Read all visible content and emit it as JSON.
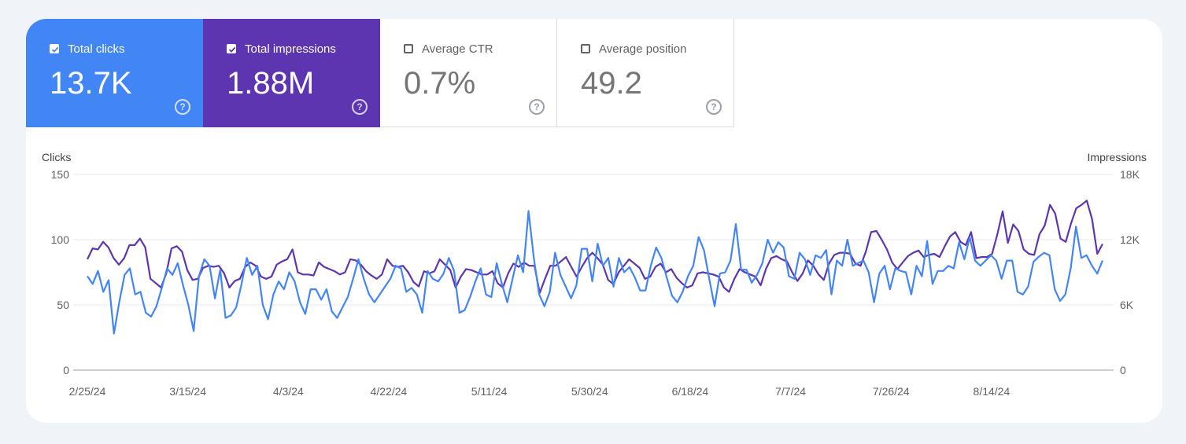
{
  "metrics": {
    "clicks": {
      "label": "Total clicks",
      "value": "13.7K",
      "checked": true
    },
    "impressions": {
      "label": "Total impressions",
      "value": "1.88M",
      "checked": true
    },
    "ctr": {
      "label": "Average CTR",
      "value": "0.7%",
      "checked": false
    },
    "position": {
      "label": "Average position",
      "value": "49.2",
      "checked": false
    }
  },
  "help_glyph": "?",
  "colors": {
    "clicks": "#4285f4",
    "impressions": "#5e35b1"
  },
  "chart_data": {
    "type": "line",
    "title": "",
    "left_axis_label": "Clicks",
    "right_axis_label": "Impressions",
    "left_ylim": [
      0,
      150
    ],
    "right_ylim": [
      0,
      18000
    ],
    "left_ticks": [
      "0",
      "50",
      "100",
      "150"
    ],
    "right_ticks": [
      "0",
      "6K",
      "12K",
      "18K"
    ],
    "x_tick_labels": [
      "2/25/24",
      "3/15/24",
      "4/3/24",
      "4/22/24",
      "5/11/24",
      "5/30/24",
      "6/18/24",
      "7/7/24",
      "7/26/24",
      "8/14/24"
    ],
    "x_start": "2024-02-25",
    "x_end": "2024-09-04",
    "grid": true,
    "series": [
      {
        "name": "Clicks",
        "axis": "left",
        "values": [
          72,
          66,
          76,
          60,
          69,
          28,
          52,
          73,
          78,
          58,
          60,
          44,
          41,
          49,
          63,
          78,
          73,
          82,
          65,
          50,
          30,
          72,
          85,
          80,
          55,
          77,
          40,
          42,
          48,
          66,
          86,
          73,
          80,
          50,
          39,
          58,
          68,
          62,
          75,
          68,
          52,
          43,
          62,
          62,
          54,
          62,
          45,
          40,
          48,
          56,
          70,
          85,
          70,
          58,
          52,
          58,
          64,
          70,
          80,
          78,
          60,
          63,
          58,
          44,
          76,
          70,
          68,
          74,
          86,
          76,
          44,
          46,
          56,
          68,
          78,
          58,
          56,
          82,
          66,
          52,
          70,
          88,
          75,
          122,
          86,
          58,
          49,
          60,
          90,
          73,
          64,
          55,
          65,
          93,
          93,
          68,
          97,
          80,
          86,
          64,
          86,
          75,
          79,
          71,
          61,
          61,
          80,
          94,
          86,
          71,
          57,
          52,
          60,
          72,
          80,
          102,
          92,
          70,
          49,
          74,
          75,
          84,
          112,
          77,
          77,
          67,
          73,
          82,
          100,
          90,
          98,
          94,
          72,
          70,
          90,
          85,
          73,
          88,
          86,
          92,
          58,
          84,
          80,
          100,
          80,
          82,
          84,
          75,
          52,
          74,
          80,
          62,
          78,
          76,
          75,
          58,
          80,
          72,
          99,
          66,
          76,
          76,
          80,
          78,
          98,
          85,
          102,
          84,
          80,
          84,
          88,
          84,
          70,
          84,
          84,
          60,
          58,
          64,
          83,
          87,
          90,
          88,
          62,
          53,
          58,
          78,
          110,
          86,
          88,
          80,
          74,
          84
        ]
      },
      {
        "name": "Impressions",
        "axis": "right",
        "values": [
          10200,
          11200,
          11100,
          11800,
          11300,
          10300,
          9700,
          10300,
          11500,
          11500,
          12100,
          11300,
          8400,
          8000,
          7600,
          8900,
          11200,
          11400,
          10900,
          9200,
          8300,
          8400,
          9400,
          9600,
          9500,
          9600,
          8900,
          7600,
          8200,
          8400,
          9500,
          9900,
          9600,
          8600,
          8400,
          8600,
          9700,
          10000,
          10200,
          11100,
          9000,
          8800,
          8800,
          8700,
          9900,
          9500,
          9300,
          9100,
          8800,
          9000,
          10200,
          10100,
          9700,
          9100,
          8700,
          8400,
          8800,
          10200,
          9600,
          9500,
          9600,
          9000,
          8100,
          7700,
          9100,
          8900,
          9100,
          10200,
          9700,
          9200,
          7600,
          8600,
          9300,
          9200,
          9000,
          8800,
          8800,
          9100,
          8000,
          7600,
          8900,
          9800,
          9500,
          9900,
          9600,
          9600,
          7100,
          8400,
          9600,
          9600,
          10000,
          10400,
          9500,
          8600,
          9500,
          10300,
          10800,
          10300,
          9700,
          8300,
          7900,
          9000,
          9600,
          10200,
          9800,
          9400,
          8400,
          8600,
          9500,
          9800,
          9000,
          9300,
          8500,
          8000,
          7600,
          7800,
          8900,
          9000,
          8900,
          8800,
          8600,
          7600,
          7200,
          8400,
          9300,
          9000,
          8800,
          8600,
          7800,
          9300,
          10300,
          10500,
          10200,
          10000,
          9000,
          8200,
          8900,
          10100,
          9600,
          8800,
          8300,
          9800,
          10600,
          10800,
          10800,
          10700,
          9800,
          9600,
          10900,
          12700,
          12800,
          12000,
          11100,
          9900,
          9300,
          9900,
          10500,
          10800,
          11000,
          10400,
          10600,
          10700,
          10400,
          11400,
          12300,
          12700,
          11800,
          11500,
          12700,
          10300,
          10400,
          10400,
          10700,
          12500,
          14600,
          11700,
          13400,
          12800,
          11100,
          10700,
          10600,
          12500,
          13300,
          15200,
          14400,
          12100,
          11800,
          13500,
          14900,
          15200,
          15600,
          13900,
          10700,
          11600
        ]
      }
    ]
  }
}
